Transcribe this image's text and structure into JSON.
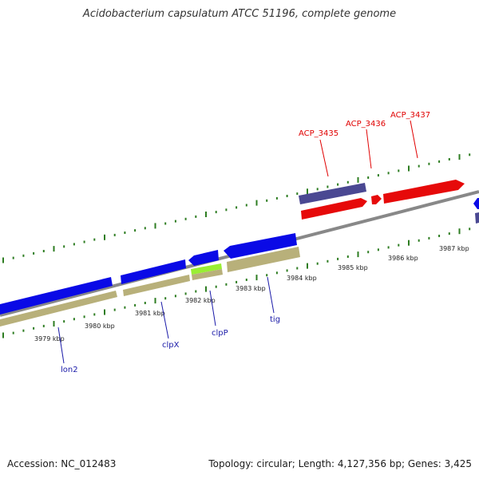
{
  "title": "Acidobacterium capsulatum ATCC 51196, complete genome",
  "accession": "Accession: NC_012483",
  "topology": "Topology: circular; Length: 4,127,356 bp; Genes: 3,425",
  "colors": {
    "forward_cds": "#0a0ae6",
    "reverse_cds": "#e60a0a",
    "highlighted_cds": "#4a4892",
    "rna_gene": "#99ee33",
    "gene_shadow": "#b8b07a",
    "backbone": "#888888",
    "ticks": "#2e7d22",
    "forward_label": "#1a1aa8",
    "reverse_label": "#e00000"
  },
  "scale_labels": [
    "3979 kbp",
    "3980 kbp",
    "3981 kbp",
    "3982 kbp",
    "3983 kbp",
    "3984 kbp",
    "3985 kbp",
    "3986 kbp",
    "3987 kbp"
  ],
  "genes_forward": [
    {
      "label": "lon2"
    },
    {
      "label": "clpX"
    },
    {
      "label": "clpP"
    },
    {
      "label": "tig"
    }
  ],
  "genes_reverse": [
    {
      "label": "ACP_3435"
    },
    {
      "label": "ACP_3436"
    },
    {
      "label": "ACP_3437"
    }
  ]
}
